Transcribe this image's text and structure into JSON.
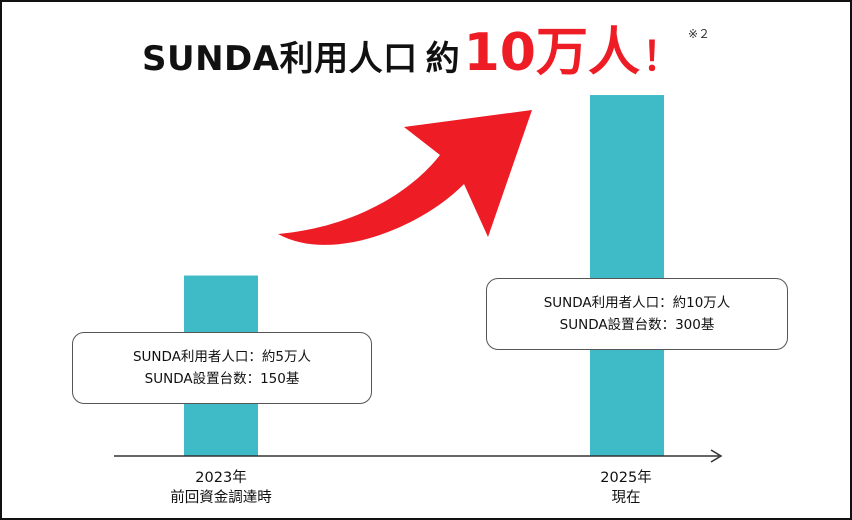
{
  "title": {
    "main": "SUNDA利用人口",
    "approx": "約",
    "big": "10万人",
    "exclaim": "！",
    "note": "※２"
  },
  "chart_data": {
    "type": "bar",
    "categories": [
      "2023年",
      "2025年"
    ],
    "category_sublabels": [
      "前回資金調達時",
      "現在"
    ],
    "values": [
      5,
      10
    ],
    "value_unit": "万人",
    "ylim": [
      0,
      10.5
    ],
    "grid": false,
    "bar_color": "#3fbac7",
    "arrow_color": "#ee1c25",
    "annotations": [
      {
        "category": "2023年",
        "lines": [
          "SUNDA利用者人口：約5万人",
          "SUNDA設置台数：150基"
        ]
      },
      {
        "category": "2025年",
        "lines": [
          "SUNDA利用者人口：約10万人",
          "SUNDA設置台数：300基"
        ]
      }
    ]
  }
}
